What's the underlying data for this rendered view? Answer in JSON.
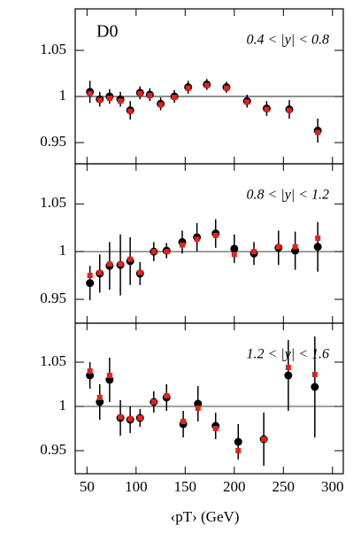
{
  "chart_data": [
    {
      "type": "scatter",
      "label": "D0",
      "annotation": "0.4 < |y| < 0.8",
      "x": [
        53,
        63,
        73,
        84,
        94,
        104,
        114,
        125,
        139,
        153,
        172,
        192,
        213,
        233,
        256,
        285
      ],
      "xlim": [
        38,
        311
      ],
      "xticks": [
        50,
        100,
        150,
        200,
        250,
        300
      ],
      "ylim": [
        0.927,
        1.095
      ],
      "yticks": [
        0.95,
        1,
        1.05
      ],
      "hline": 1,
      "series": [
        {
          "color": "#000000",
          "marker": "circle",
          "values": [
            1.005,
            0.997,
            1.0,
            0.997,
            0.985,
            1.004,
            1.002,
            0.992,
            1.0,
            1.01,
            1.013,
            1.01,
            0.995,
            0.987,
            0.986,
            0.963
          ],
          "errors": [
            0.012,
            0.008,
            0.008,
            0.008,
            0.01,
            0.007,
            0.007,
            0.007,
            0.007,
            0.007,
            0.006,
            0.006,
            0.007,
            0.008,
            0.01,
            0.013
          ]
        },
        {
          "color": "#e8201c",
          "marker": "square",
          "values": [
            1.003,
            0.996,
            0.998,
            0.995,
            0.984,
            1.003,
            1.001,
            0.991,
            0.999,
            1.009,
            1.012,
            1.009,
            0.994,
            0.986,
            0.985,
            0.961
          ]
        }
      ]
    },
    {
      "type": "scatter",
      "annotation": "0.8 < |y| < 1.2",
      "x": [
        53,
        63,
        73,
        84,
        94,
        104,
        118,
        131,
        147,
        162,
        181,
        200,
        220,
        245,
        262,
        285
      ],
      "xlim": [
        38,
        311
      ],
      "xticks": [
        50,
        100,
        150,
        200,
        250,
        300
      ],
      "ylim": [
        0.925,
        1.092
      ],
      "yticks": [
        0.95,
        1,
        1.05
      ],
      "hline": 1,
      "series": [
        {
          "color": "#000000",
          "marker": "circle",
          "values": [
            0.967,
            0.977,
            0.985,
            0.986,
            0.99,
            0.977,
            1.0,
            1.001,
            1.01,
            1.015,
            1.019,
            1.003,
            0.998,
            1.004,
            1.001,
            1.005
          ],
          "errors": [
            0.018,
            0.02,
            0.025,
            0.032,
            0.025,
            0.012,
            0.01,
            0.008,
            0.012,
            0.015,
            0.015,
            0.015,
            0.012,
            0.018,
            0.02,
            0.026
          ]
        },
        {
          "color": "#e8201c",
          "marker": "square",
          "values": [
            0.975,
            0.978,
            0.987,
            0.987,
            0.992,
            0.978,
            1.0,
            1.0,
            1.007,
            1.013,
            1.017,
            0.997,
            1.0,
            1.005,
            1.005,
            1.014
          ]
        }
      ]
    },
    {
      "type": "scatter",
      "annotation": "1.2 < |y| < 1.6",
      "xlabel": "‹pT› (GeV)",
      "x": [
        53,
        63,
        73,
        84,
        94,
        104,
        118,
        131,
        148,
        163,
        181,
        204,
        230,
        255,
        282
      ],
      "xlim": [
        38,
        311
      ],
      "xticks": [
        50,
        100,
        150,
        200,
        250,
        300
      ],
      "ylim": [
        0.924,
        1.094
      ],
      "yticks": [
        0.95,
        1,
        1.05
      ],
      "hline": 1,
      "series": [
        {
          "color": "#000000",
          "marker": "circle",
          "values": [
            1.035,
            1.005,
            1.03,
            0.987,
            0.985,
            0.987,
            1.005,
            1.01,
            0.98,
            1.003,
            0.978,
            0.96,
            0.963,
            1.035,
            1.022
          ],
          "errors": [
            0.015,
            0.02,
            0.025,
            0.02,
            0.015,
            0.01,
            0.012,
            0.015,
            0.015,
            0.02,
            0.015,
            0.02,
            0.03,
            0.04,
            0.057
          ]
        },
        {
          "color": "#e8201c",
          "marker": "square",
          "values": [
            1.04,
            1.01,
            1.035,
            0.988,
            0.986,
            0.987,
            1.005,
            1.012,
            0.983,
            0.998,
            0.975,
            0.95,
            0.963,
            1.044,
            1.036
          ]
        }
      ]
    }
  ]
}
